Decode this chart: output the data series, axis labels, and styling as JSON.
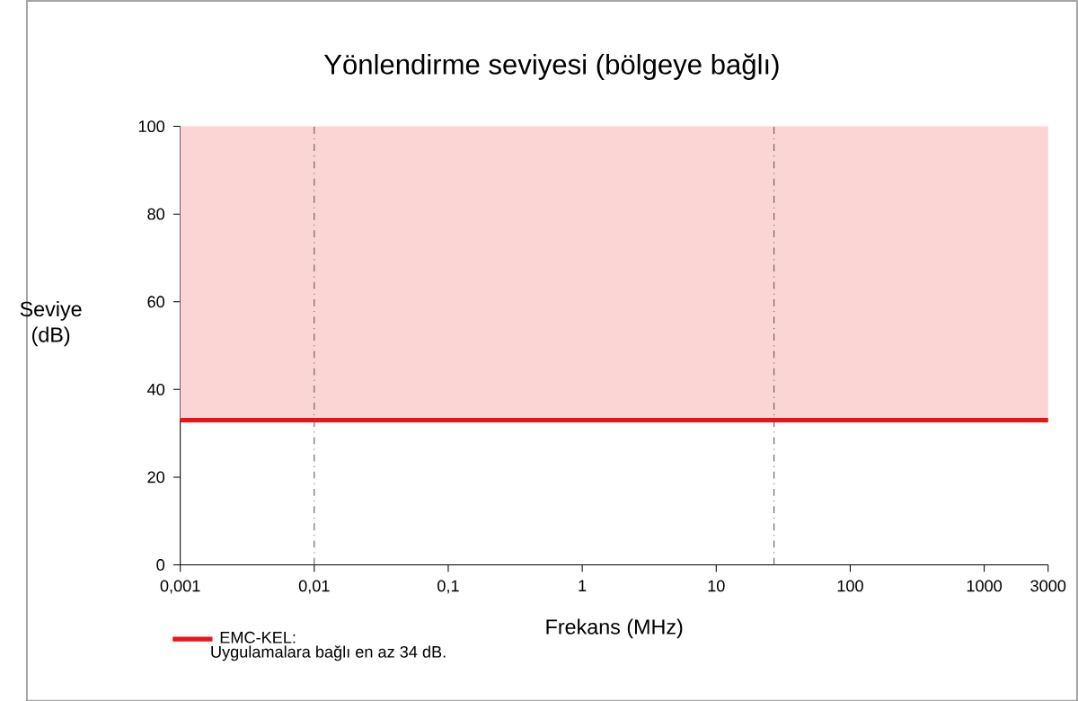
{
  "chart_data": {
    "type": "line",
    "title": "Yönlendirme seviyesi (bölgeye bağlı)",
    "xlabel": "Frekans (MHz)",
    "ylabel": "Seviye (dB)",
    "log": "x",
    "xlim": [
      0.001,
      3000
    ],
    "ylim": [
      0,
      100
    ],
    "xticks": [
      {
        "value": 0.001,
        "label": "0,001"
      },
      {
        "value": 0.01,
        "label": "0,01"
      },
      {
        "value": 0.1,
        "label": "0,1"
      },
      1,
      10,
      100,
      1000,
      3000
    ],
    "yticks": [
      0,
      20,
      40,
      60,
      80,
      100
    ],
    "series": [
      {
        "name": "EMC-KEL:",
        "color": "#e8141c",
        "x": [
          0.001,
          3000
        ],
        "values": [
          33,
          33
        ]
      }
    ],
    "bands": [
      {
        "axis": "y",
        "from": 33,
        "to": 100,
        "color": "#fad5d4"
      }
    ],
    "ref_lines": [
      {
        "axis": "x",
        "value": 0.01,
        "line_style": "dashdot",
        "color": "#555555"
      },
      {
        "axis": "x",
        "value": 27,
        "line_style": "dashdot",
        "color": "#555555"
      }
    ],
    "annotations": [
      "Uygulamalara bağlı en az 34 dB."
    ],
    "legend": "bottom left",
    "grid": false,
    "marker": "none",
    "line_style": "solid"
  }
}
